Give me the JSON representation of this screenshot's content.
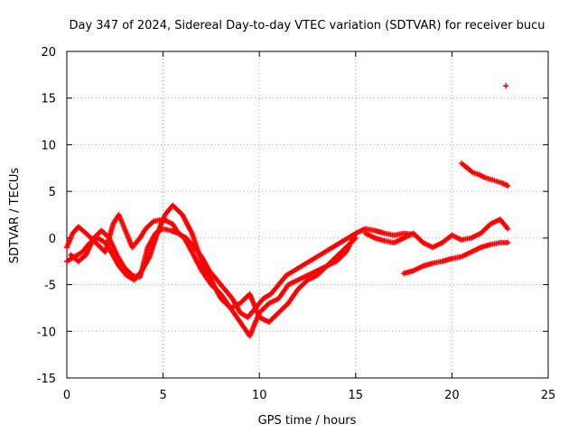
{
  "chart_data": {
    "type": "scatter",
    "title": "Day 347 of 2024, Sidereal Day-to-day VTEC variation (SDTVAR) for receiver bucu",
    "xlabel": "GPS time / hours",
    "ylabel": "SDTVAR / TECUs",
    "xlim": [
      0,
      25
    ],
    "ylim": [
      -15,
      20
    ],
    "xticks": [
      0,
      5,
      10,
      15,
      20,
      25
    ],
    "yticks": [
      -15,
      -10,
      -5,
      0,
      5,
      10,
      15,
      20
    ],
    "grid": true,
    "marker": "+",
    "color": "#ff0000",
    "series": [
      {
        "name": "track-a",
        "x": [
          0.0,
          0.3,
          0.6,
          1.0,
          1.5,
          2.0,
          2.4,
          2.7,
          3.0,
          3.4,
          3.8,
          4.1,
          4.5,
          5.0,
          5.5,
          5.8,
          6.1,
          6.5,
          7.0,
          7.5,
          8.0,
          8.5,
          9.0,
          9.5,
          10.0,
          10.5,
          11.0,
          11.5,
          12.0,
          12.5,
          13.0,
          13.5,
          14.0,
          14.5,
          15.0,
          15.5,
          16.0,
          16.5,
          17.0,
          17.5,
          18.0
        ],
        "y": [
          -1.0,
          0.5,
          1.2,
          0.5,
          -0.5,
          -1.5,
          1.5,
          2.5,
          1.0,
          -1.0,
          0.0,
          1.0,
          1.8,
          2.0,
          1.5,
          0.5,
          0.0,
          -1.5,
          -3.5,
          -5.0,
          -6.0,
          -7.5,
          -9.0,
          -10.5,
          -8.0,
          -7.0,
          -6.5,
          -5.0,
          -4.5,
          -4.0,
          -3.5,
          -3.0,
          -2.5,
          -1.5,
          0.5,
          1.0,
          0.8,
          0.5,
          0.3,
          0.5,
          0.4
        ]
      },
      {
        "name": "track-b",
        "x": [
          0.0,
          0.4,
          0.8,
          1.2,
          1.6,
          2.0,
          2.3,
          2.7,
          3.1,
          3.5,
          3.9,
          4.3,
          4.7,
          5.1,
          5.5,
          6.0,
          6.5,
          7.0,
          7.5,
          8.0,
          8.5,
          9.0,
          9.5,
          10.0,
          10.5,
          11.0,
          11.5,
          12.0,
          12.5,
          13.0,
          13.5,
          14.0,
          14.5,
          15.0
        ],
        "y": [
          -2.5,
          -2.0,
          -1.5,
          -0.5,
          0.0,
          -0.5,
          -1.5,
          -3.0,
          -4.0,
          -4.5,
          -3.5,
          -2.0,
          0.5,
          2.5,
          3.5,
          2.5,
          0.5,
          -2.5,
          -4.5,
          -6.5,
          -7.5,
          -7.0,
          -6.0,
          -8.5,
          -9.0,
          -8.0,
          -7.0,
          -5.5,
          -4.5,
          -4.0,
          -3.0,
          -2.0,
          -1.0,
          0.0
        ]
      },
      {
        "name": "track-c",
        "x": [
          0.2,
          0.6,
          1.0,
          1.4,
          1.8,
          2.2,
          2.6,
          3.0,
          3.4,
          3.8,
          4.2,
          4.6,
          5.0,
          5.4,
          5.8,
          6.2,
          6.6,
          7.0,
          7.4,
          7.8,
          8.2,
          8.6,
          9.0,
          9.4,
          9.8,
          10.2,
          10.6,
          11.0,
          11.4,
          11.8,
          12.2,
          12.6,
          13.0,
          13.4,
          13.8,
          14.2,
          14.6,
          15.0
        ],
        "y": [
          -1.8,
          -2.5,
          -1.8,
          0.0,
          0.8,
          0.0,
          -1.8,
          -3.2,
          -4.0,
          -4.2,
          -1.0,
          0.5,
          1.0,
          0.8,
          0.5,
          0.0,
          -1.0,
          -2.0,
          -3.5,
          -4.5,
          -5.5,
          -6.5,
          -8.0,
          -8.5,
          -7.5,
          -6.5,
          -6.0,
          -5.0,
          -4.0,
          -3.5,
          -3.0,
          -2.5,
          -2.0,
          -1.5,
          -1.0,
          -0.5,
          0.0,
          0.5
        ]
      },
      {
        "name": "track-d",
        "x": [
          15.5,
          16.0,
          16.5,
          17.0,
          17.5,
          18.0,
          18.5,
          19.0,
          19.5,
          20.0,
          20.5,
          21.0,
          21.5,
          22.0,
          22.5,
          22.9
        ],
        "y": [
          0.5,
          0.0,
          -0.3,
          -0.5,
          0.0,
          0.5,
          -0.5,
          -1.0,
          -0.5,
          0.3,
          -0.2,
          0.0,
          0.5,
          1.5,
          2.0,
          1.0
        ]
      },
      {
        "name": "track-e",
        "x": [
          17.5,
          18.0,
          18.5,
          19.0,
          19.5,
          20.0,
          20.5,
          21.0,
          21.5,
          22.0,
          22.5,
          22.9
        ],
        "y": [
          -3.8,
          -3.5,
          -3.0,
          -2.7,
          -2.5,
          -2.2,
          -2.0,
          -1.5,
          -1.0,
          -0.7,
          -0.5,
          -0.5
        ]
      },
      {
        "name": "track-f",
        "x": [
          20.5,
          20.8,
          21.1,
          21.4,
          21.7,
          22.0,
          22.3,
          22.6,
          22.9
        ],
        "y": [
          8.0,
          7.5,
          7.0,
          6.8,
          6.5,
          6.3,
          6.1,
          5.9,
          5.6
        ]
      },
      {
        "name": "outlier",
        "x": [
          22.8
        ],
        "y": [
          16.3
        ]
      }
    ]
  }
}
